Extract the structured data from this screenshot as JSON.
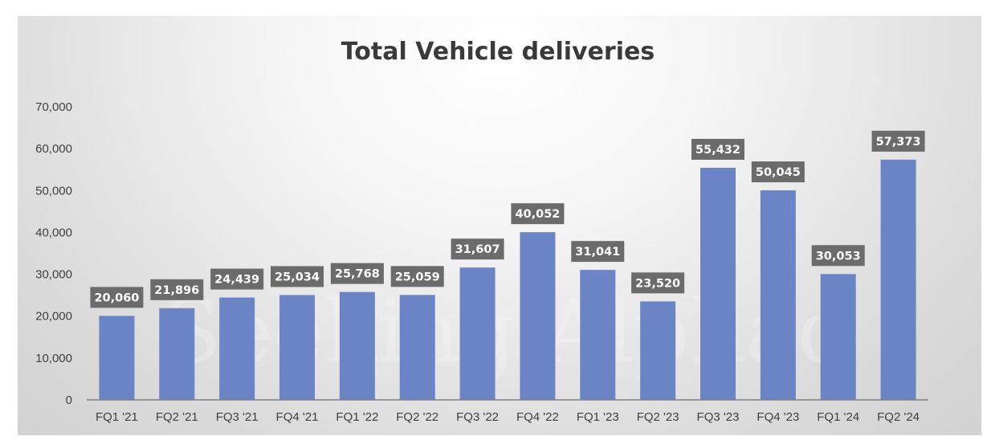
{
  "chart_data": {
    "type": "bar",
    "title": "Total Vehicle deliveries",
    "xlabel": "",
    "ylabel": "",
    "categories": [
      "FQ1 '21",
      "FQ2 '21",
      "FQ3 '21",
      "FQ4 '21",
      "FQ1 '22",
      "FQ2 '22",
      "FQ3 '22",
      "FQ4 '22",
      "FQ1 '23",
      "FQ2 '23",
      "FQ3 '23",
      "FQ4 '23",
      "FQ1 '24",
      "FQ2 '24"
    ],
    "values": [
      20060,
      21896,
      24439,
      25034,
      25768,
      25059,
      31607,
      40052,
      31041,
      23520,
      55432,
      50045,
      30053,
      57373
    ],
    "data_labels": [
      "20,060",
      "21,896",
      "24,439",
      "25,034",
      "25,768",
      "25,059",
      "31,607",
      "40,052",
      "31,041",
      "23,520",
      "55,432",
      "50,045",
      "30,053",
      "57,373"
    ],
    "ylim": [
      0,
      70000
    ],
    "yticks": [
      0,
      10000,
      20000,
      30000,
      40000,
      50000,
      60000,
      70000
    ],
    "ytick_labels": [
      "0",
      "10,000",
      "20,000",
      "30,000",
      "40,000",
      "50,000",
      "60,000",
      "70,000"
    ],
    "grid": false,
    "legend": "none",
    "colors": {
      "bar": "#6a84c6",
      "label_bg": "#6b6b6b",
      "label_text": "#ffffff",
      "axis": "#7f7f7f",
      "title": "#3a3a3a"
    }
  },
  "watermark": "Seeking Alphaα"
}
